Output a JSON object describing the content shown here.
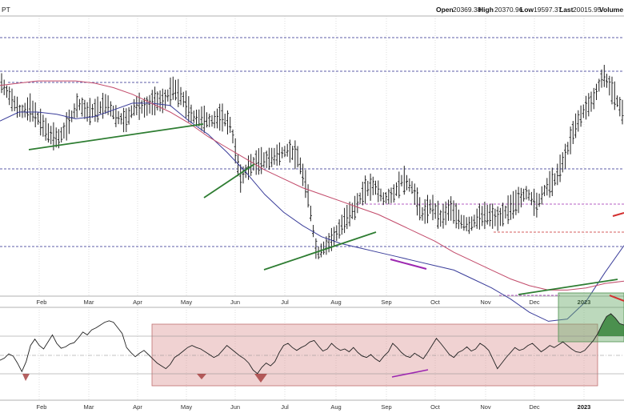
{
  "header": {
    "symbol_fragment": "PT",
    "open_label": "Open",
    "open_value": "20369.38",
    "high_label": "High",
    "high_value": "20370.96",
    "low_label": "Low",
    "low_value": "19597.37",
    "last_label": "Last",
    "last_value": "20015.95",
    "volume_label": "Volume"
  },
  "colors": {
    "price_bars": "#222222",
    "ma_short": "#3a3d9a",
    "ma_long": "#c24a6a",
    "support_trend": "#2e7d32",
    "divergence": "#9c27b0",
    "resistance_red": "#d32f2f",
    "dashed_navy": "#2a2a8f",
    "dashed_purple": "#9c27b0",
    "dashed_red": "#c62828",
    "oscillator": "#222222",
    "box_pink": "#d88a8a",
    "box_green": "#6aaa6a",
    "fill_green": "#2e7d32",
    "fill_red": "#a33a3a"
  },
  "chart_data": {
    "type": "line",
    "x_axis": [
      "Feb",
      "Mar",
      "Apr",
      "May",
      "Jun",
      "Jul",
      "Aug",
      "Sep",
      "Oct",
      "Nov",
      "Dec",
      "2023"
    ],
    "series": [
      {
        "values": [
          0.95,
          0.88,
          0.82,
          0.84,
          0.78,
          0.72,
          0.7,
          0.77,
          0.86,
          0.82,
          0.83,
          0.86,
          0.8,
          0.78,
          0.85,
          0.84,
          0.87,
          0.87,
          0.93,
          0.88,
          0.8,
          0.79,
          0.78,
          0.8,
          0.76,
          0.52,
          0.58,
          0.6,
          0.61,
          0.63,
          0.65,
          0.62,
          0.47,
          0.18,
          0.22,
          0.27,
          0.34,
          0.39,
          0.47,
          0.49,
          0.43,
          0.45,
          0.52,
          0.48,
          0.36,
          0.4,
          0.34,
          0.39,
          0.33,
          0.31,
          0.35,
          0.36,
          0.34,
          0.38,
          0.42,
          0.46,
          0.4,
          0.48,
          0.52,
          0.62,
          0.75,
          0.83,
          0.88,
          0.99,
          0.91,
          0.82
        ]
      },
      {
        "values": [
          0.78,
          0.82,
          0.82,
          0.81,
          0.79,
          0.8,
          0.83,
          0.86,
          0.86,
          0.85,
          0.78,
          0.72,
          0.64,
          0.55,
          0.45,
          0.37,
          0.31,
          0.26,
          0.23,
          0.21,
          0.19,
          0.17,
          0.15,
          0.13,
          0.11,
          0.07,
          0.03,
          -0.02,
          -0.08,
          -0.12,
          -0.11,
          -0.03,
          0.1,
          0.22
        ]
      },
      {
        "values": [
          0.94,
          0.95,
          0.96,
          0.96,
          0.96,
          0.95,
          0.93,
          0.9,
          0.86,
          0.82,
          0.77,
          0.71,
          0.66,
          0.61,
          0.56,
          0.52,
          0.48,
          0.45,
          0.42,
          0.39,
          0.36,
          0.32,
          0.28,
          0.24,
          0.19,
          0.15,
          0.11,
          0.07,
          0.04,
          0.02,
          0.02,
          0.03,
          0.05,
          0.06
        ]
      }
    ],
    "lower_panel": {
      "values": [
        0.34,
        0.37,
        0.43,
        0.4,
        0.3,
        0.18,
        0.32,
        0.55,
        0.64,
        0.55,
        0.5,
        0.6,
        0.7,
        0.58,
        0.51,
        0.53,
        0.57,
        0.59,
        0.66,
        0.74,
        0.7,
        0.77,
        0.8,
        0.84,
        0.88,
        0.9,
        0.88,
        0.8,
        0.72,
        0.52,
        0.45,
        0.39,
        0.44,
        0.48,
        0.42,
        0.36,
        0.3,
        0.26,
        0.22,
        0.28,
        0.38,
        0.42,
        0.47,
        0.52,
        0.55,
        0.52,
        0.5,
        0.46,
        0.42,
        0.38,
        0.41,
        0.48,
        0.55,
        0.5,
        0.45,
        0.4,
        0.36,
        0.3,
        0.2,
        0.15,
        0.24,
        0.3,
        0.26,
        0.32,
        0.45,
        0.55,
        0.58,
        0.52,
        0.48,
        0.52,
        0.55,
        0.6,
        0.62,
        0.54,
        0.47,
        0.5,
        0.58,
        0.52,
        0.48,
        0.5,
        0.46,
        0.52,
        0.45,
        0.4,
        0.38,
        0.42,
        0.36,
        0.32,
        0.4,
        0.46,
        0.58,
        0.52,
        0.45,
        0.4,
        0.38,
        0.44,
        0.4,
        0.36,
        0.45,
        0.55,
        0.65,
        0.58,
        0.5,
        0.42,
        0.38,
        0.45,
        0.48,
        0.53,
        0.47,
        0.5,
        0.58,
        0.54,
        0.48,
        0.35,
        0.22,
        0.3,
        0.38,
        0.45,
        0.52,
        0.48,
        0.5,
        0.55,
        0.58,
        0.52,
        0.46,
        0.5,
        0.55,
        0.52,
        0.56,
        0.6,
        0.55,
        0.5,
        0.46,
        0.45,
        0.48,
        0.55,
        0.62,
        0.72,
        0.85,
        0.96,
        1.0,
        0.94,
        0.86,
        0.84
      ]
    }
  }
}
